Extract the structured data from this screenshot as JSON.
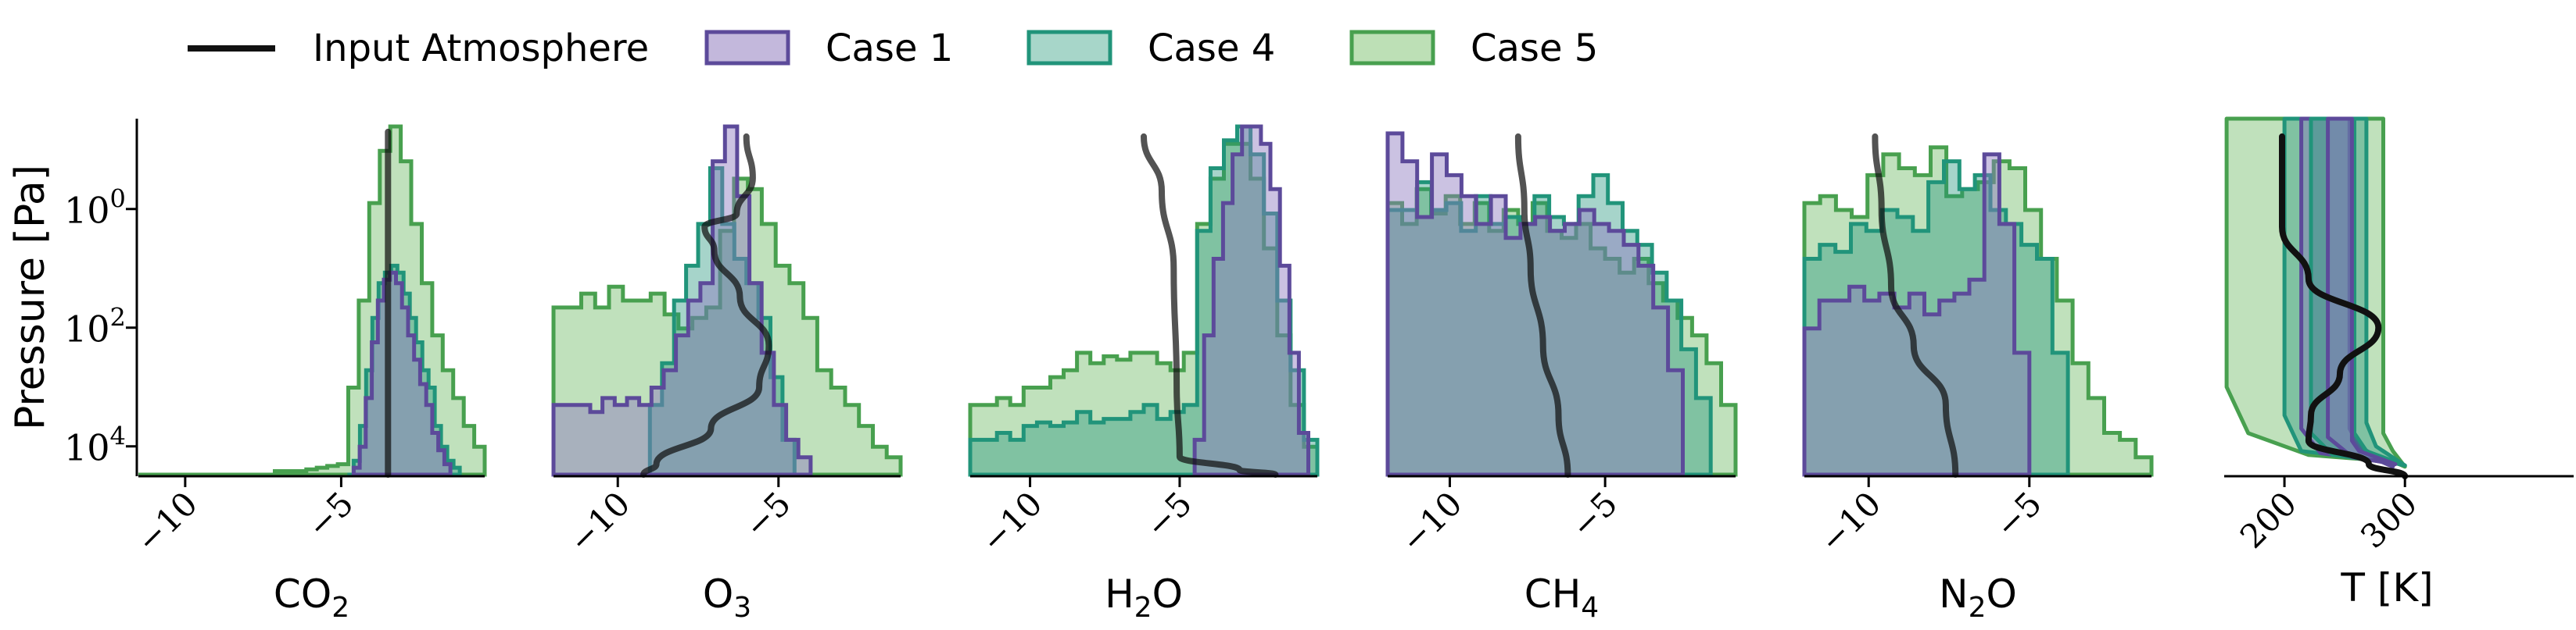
{
  "chart_data": {
    "type": "area",
    "ylabel": "Pressure [Pa]",
    "yscale": "log",
    "ylim": [
      30000,
      0.03
    ],
    "yticks": [
      {
        "value": 1,
        "label": "10^0"
      },
      {
        "value": 100,
        "label": "10^2"
      },
      {
        "value": 10000,
        "label": "10^4"
      }
    ],
    "legend": {
      "position": "top",
      "entries": [
        {
          "label": "Input Atmosphere",
          "kind": "line",
          "color": "#111111"
        },
        {
          "label": "Case 1",
          "kind": "patch",
          "edge": "#5c4a9a",
          "fill": "#c3b8dc"
        },
        {
          "label": "Case 4",
          "kind": "patch",
          "edge": "#21947a",
          "fill": "#a7d6c9"
        },
        {
          "label": "Case 5",
          "kind": "patch",
          "edge": "#48a04f",
          "fill": "#bde0b6"
        }
      ]
    },
    "colors": {
      "case1": {
        "edge": "#5c4a9a",
        "fill": "rgba(140,120,190,0.45)"
      },
      "case4": {
        "edge": "#21947a",
        "fill": "rgba(33,148,122,0.40)"
      },
      "case5": {
        "edge": "#48a04f",
        "fill": "rgba(104,184,96,0.42)"
      },
      "input": "#111111"
    },
    "panels": [
      {
        "xlabel_main": "CO",
        "xlabel_sub": "2",
        "xlim": [
          -11.5,
          -0.4
        ],
        "xticks": [
          {
            "value": -10,
            "label": "−10"
          },
          {
            "value": -5,
            "label": "−5"
          }
        ],
        "input": [
          [
            -3.5,
            0.05
          ],
          [
            -3.5,
            30000
          ]
        ],
        "case5": {
          "xmin": -11.5,
          "xmax": -0.4,
          "dens": [
            0,
            0,
            0,
            0,
            0,
            0,
            0,
            0,
            0,
            0,
            0,
            0,
            0,
            0.01,
            0.01,
            0.01,
            0.015,
            0.02,
            0.025,
            0.03,
            0.25,
            0.5,
            0.78,
            0.93,
            1.0,
            0.9,
            0.72,
            0.55,
            0.4,
            0.3,
            0.22,
            0.14,
            0.08
          ]
        },
        "case4": {
          "xmin": -4.8,
          "xmax": -1.2,
          "dens": [
            0,
            0.04,
            0.14,
            0.3,
            0.45,
            0.55,
            0.58,
            0.6,
            0.58,
            0.52,
            0.45,
            0.38,
            0.3,
            0.25,
            0.14,
            0.08,
            0.04,
            0.02
          ]
        },
        "case1": {
          "xmin": -4.6,
          "xmax": -1.5,
          "dens": [
            0.02,
            0.08,
            0.22,
            0.38,
            0.5,
            0.56,
            0.58,
            0.55,
            0.48,
            0.4,
            0.33,
            0.26,
            0.2,
            0.12,
            0.07,
            0.03
          ]
        }
      },
      {
        "xlabel_main": "O",
        "xlabel_sub": "3",
        "xlim": [
          -12.0,
          -1.2
        ],
        "xticks": [
          {
            "value": -10,
            "label": "−10"
          },
          {
            "value": -5,
            "label": "−5"
          }
        ],
        "input": [
          [
            -6.0,
            0.06
          ],
          [
            -5.8,
            0.3
          ],
          [
            -6.3,
            1.2
          ],
          [
            -7.3,
            2.0
          ],
          [
            -7.0,
            5.0
          ],
          [
            -6.2,
            30
          ],
          [
            -5.3,
            200
          ],
          [
            -5.6,
            1000
          ],
          [
            -7.1,
            5000
          ],
          [
            -8.8,
            20000
          ],
          [
            -9.2,
            30000
          ]
        ],
        "case5": {
          "xmin": -12.0,
          "xmax": -1.2,
          "dens": [
            0.48,
            0.48,
            0.52,
            0.48,
            0.54,
            0.5,
            0.5,
            0.52,
            0.46,
            0.42,
            0.45,
            0.48,
            0.7,
            0.85,
            0.82,
            0.72,
            0.6,
            0.55,
            0.45,
            0.3,
            0.25,
            0.2,
            0.14,
            0.08,
            0.05
          ]
        },
        "case4": {
          "xmin": -9.0,
          "xmax": -4.5,
          "dens": [
            0.2,
            0.32,
            0.5,
            0.6,
            0.72,
            0.88,
            0.72,
            0.62,
            0.55,
            0.45,
            0.28,
            0.1
          ]
        },
        "case1": {
          "xmin": -12.0,
          "xmax": -4.0,
          "dens": [
            0.2,
            0.2,
            0.2,
            0.18,
            0.22,
            0.2,
            0.22,
            0.2,
            0.25,
            0.3,
            0.4,
            0.5,
            0.55,
            0.9,
            1.0,
            0.8,
            0.55,
            0.35,
            0.2,
            0.1,
            0.05
          ]
        }
      },
      {
        "xlabel_main": "H",
        "xlabel_sub": "2",
        "xlabel_after": "O",
        "xlim": [
          -12.0,
          -0.4
        ],
        "xticks": [
          {
            "value": -10,
            "label": "−10"
          },
          {
            "value": -5,
            "label": "−5"
          }
        ],
        "input": [
          [
            -6.2,
            0.06
          ],
          [
            -5.6,
            0.5
          ],
          [
            -5.2,
            10
          ],
          [
            -5.1,
            1000
          ],
          [
            -5.0,
            15000
          ],
          [
            -3.0,
            25000
          ],
          [
            -1.8,
            30000
          ]
        ],
        "case5": {
          "xmin": -12.0,
          "xmax": -0.4,
          "dens": [
            0.2,
            0.2,
            0.22,
            0.2,
            0.25,
            0.25,
            0.28,
            0.3,
            0.35,
            0.32,
            0.34,
            0.33,
            0.35,
            0.35,
            0.32,
            0.3,
            0.35,
            0.72,
            0.85,
            0.95,
            0.95,
            0.85,
            0.65,
            0.4,
            0.2,
            0.08
          ]
        },
        "case4": {
          "xmin": -12.0,
          "xmax": -0.4,
          "dens": [
            0.1,
            0.1,
            0.12,
            0.1,
            0.14,
            0.15,
            0.14,
            0.15,
            0.18,
            0.15,
            0.16,
            0.16,
            0.18,
            0.2,
            0.16,
            0.18,
            0.2,
            0.7,
            0.88,
            0.96,
            1.0,
            0.92,
            0.75,
            0.5,
            0.3,
            0.1
          ]
        },
        "case1": {
          "xmin": -4.5,
          "xmax": -0.7,
          "dens": [
            0.1,
            0.4,
            0.62,
            0.78,
            0.92,
            1.0,
            1.0,
            0.95,
            0.82,
            0.6,
            0.35,
            0.12
          ]
        }
      },
      {
        "xlabel_main": "CH",
        "xlabel_sub": "4",
        "xlim": [
          -12.0,
          -0.8
        ],
        "xticks": [
          {
            "value": -10,
            "label": "−10"
          },
          {
            "value": -5,
            "label": "−5"
          }
        ],
        "input": [
          [
            -7.8,
            0.06
          ],
          [
            -7.6,
            1.0
          ],
          [
            -7.4,
            10
          ],
          [
            -7.0,
            200
          ],
          [
            -6.5,
            3000
          ],
          [
            -6.2,
            30000
          ]
        ],
        "case5": {
          "xmin": -12.0,
          "xmax": -0.8,
          "dens": [
            0.78,
            0.72,
            0.82,
            0.75,
            0.8,
            0.72,
            0.78,
            0.7,
            0.76,
            0.72,
            0.78,
            0.7,
            0.68,
            0.72,
            0.65,
            0.62,
            0.58,
            0.62,
            0.55,
            0.5,
            0.45,
            0.4,
            0.32,
            0.2
          ]
        },
        "case4": {
          "xmin": -12.0,
          "xmax": -1.6,
          "dens": [
            0.76,
            0.76,
            0.84,
            0.76,
            0.78,
            0.7,
            0.8,
            0.72,
            0.74,
            0.72,
            0.8,
            0.74,
            0.72,
            0.8,
            0.86,
            0.78,
            0.7,
            0.66,
            0.58,
            0.5,
            0.36,
            0.22
          ]
        },
        "case1": {
          "xmin": -12.0,
          "xmax": -2.5,
          "dens": [
            0.98,
            0.9,
            0.74,
            0.92,
            0.86,
            0.8,
            0.72,
            0.8,
            0.68,
            0.72,
            0.74,
            0.7,
            0.72,
            0.76,
            0.72,
            0.7,
            0.66,
            0.6,
            0.48,
            0.3
          ]
        }
      },
      {
        "xlabel_main": "N",
        "xlabel_sub": "2",
        "xlabel_after": "O",
        "xlim": [
          -12.0,
          -1.2
        ],
        "xticks": [
          {
            "value": -10,
            "label": "−10"
          },
          {
            "value": -5,
            "label": "−5"
          }
        ],
        "input": [
          [
            -9.8,
            0.06
          ],
          [
            -9.6,
            1.0
          ],
          [
            -9.3,
            20
          ],
          [
            -8.6,
            200
          ],
          [
            -7.6,
            2000
          ],
          [
            -7.3,
            30000
          ]
        ],
        "case5": {
          "xmin": -12.0,
          "xmax": -1.2,
          "dens": [
            0.78,
            0.8,
            0.76,
            0.74,
            0.86,
            0.92,
            0.88,
            0.86,
            0.94,
            0.8,
            0.82,
            0.84,
            0.9,
            0.88,
            0.76,
            0.62,
            0.5,
            0.32,
            0.22,
            0.12,
            0.1,
            0.05
          ]
        },
        "case4": {
          "xmin": -12.0,
          "xmax": -3.8,
          "dens": [
            0.62,
            0.66,
            0.64,
            0.72,
            0.7,
            0.76,
            0.74,
            0.7,
            0.84,
            0.9,
            0.82,
            0.86,
            0.76,
            0.72,
            0.66,
            0.62,
            0.35
          ]
        },
        "case1": {
          "xmin": -12.0,
          "xmax": -5.0,
          "dens": [
            0.42,
            0.5,
            0.5,
            0.54,
            0.5,
            0.52,
            0.48,
            0.52,
            0.46,
            0.5,
            0.52,
            0.56,
            0.92,
            0.72,
            0.35
          ]
        }
      }
    ],
    "temperature_panel": {
      "xlabel": "T [K]",
      "xlim": [
        150,
        440
      ],
      "xticks": [
        {
          "value": 200,
          "label": "200"
        },
        {
          "value": 300,
          "label": "300"
        }
      ],
      "input": [
        [
          198,
          0.06
        ],
        [
          198,
          2
        ],
        [
          220,
          15
        ],
        [
          278,
          100
        ],
        [
          246,
          600
        ],
        [
          222,
          3000
        ],
        [
          220,
          8000
        ],
        [
          270,
          20000
        ],
        [
          300,
          32000
        ]
      ],
      "envelopes": [
        {
          "case": "case5",
          "left": [
            [
              152,
              0.03
            ],
            [
              152,
              1000
            ],
            [
              170,
              6000
            ],
            [
              220,
              14000
            ],
            [
              290,
              18000
            ],
            [
              300,
              22000
            ]
          ],
          "right": [
            [
              300,
              22000
            ],
            [
              290,
              12000
            ],
            [
              282,
              6000
            ],
            [
              282,
              1000
            ],
            [
              282,
              0.03
            ]
          ]
        },
        {
          "case": "case4",
          "left": [
            [
              200,
              0.03
            ],
            [
              200,
              3000
            ],
            [
              214,
              12000
            ],
            [
              280,
              17000
            ],
            [
              300,
              21000
            ]
          ],
          "right": [
            [
              300,
              21000
            ],
            [
              276,
              10000
            ],
            [
              268,
              4000
            ],
            [
              268,
              0.03
            ]
          ]
        },
        {
          "case": "case1",
          "left": [
            [
              214,
              0.03
            ],
            [
              214,
              5000
            ],
            [
              230,
              13000
            ],
            [
              280,
              18000
            ],
            [
              290,
              22000
            ]
          ],
          "right": [
            [
              290,
              22000
            ],
            [
              262,
              10000
            ],
            [
              254,
              5000
            ],
            [
              254,
              0.03
            ]
          ]
        },
        {
          "case": "case4",
          "left": [
            [
              222,
              0.03
            ],
            [
              222,
              6000
            ],
            [
              240,
              14000
            ],
            [
              292,
              19000
            ],
            [
              300,
              21000
            ]
          ],
          "right": [
            [
              300,
              21000
            ],
            [
              268,
              12000
            ],
            [
              258,
              6000
            ],
            [
              258,
              0.03
            ]
          ]
        },
        {
          "case": "case1",
          "left": [
            [
              236,
              0.03
            ],
            [
              236,
              7000
            ],
            [
              256,
              15000
            ],
            [
              292,
              20000
            ]
          ],
          "right": [
            [
              292,
              20000
            ],
            [
              262,
              12000
            ],
            [
              256,
              8000
            ],
            [
              256,
              0.03
            ]
          ]
        }
      ]
    }
  }
}
